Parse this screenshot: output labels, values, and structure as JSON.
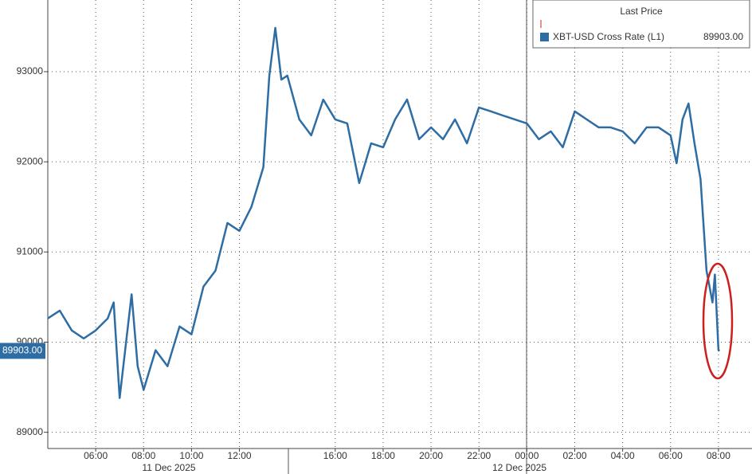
{
  "chart_data": {
    "type": "line",
    "x": [
      4,
      4.5,
      5,
      5.5,
      6,
      6.5,
      6.75,
      7,
      7.5,
      7.75,
      8,
      8.5,
      9,
      9.5,
      10,
      10.5,
      11,
      11.5,
      12,
      12.5,
      13,
      13.25,
      13.5,
      13.75,
      14,
      14.5,
      15,
      15.5,
      16,
      16.5,
      17,
      17.5,
      18,
      18.5,
      19,
      19.5,
      20,
      20.5,
      21,
      21.5,
      22,
      22.5,
      23,
      23.5,
      24,
      24.5,
      25,
      25.5,
      26,
      26.5,
      27,
      27.5,
      28,
      28.5,
      29,
      29.5,
      30,
      30.25,
      30.5,
      30.75,
      31,
      31.25,
      31.5,
      31.75,
      31.85,
      32,
      32.05
    ],
    "series": [
      {
        "name": "XBT-USD Cross Rate  (L1)",
        "color": "#2e6da4",
        "values": [
          90263,
          90350,
          90130,
          90040,
          90130,
          90263,
          90440,
          89380,
          90530,
          89733,
          89470,
          89910,
          89733,
          90174,
          90086,
          90616,
          90793,
          91322,
          91234,
          91500,
          91940,
          92956,
          93486,
          92912,
          92956,
          92470,
          92294,
          92690,
          92470,
          92426,
          91764,
          92205,
          92161,
          92470,
          92690,
          92250,
          92382,
          92250,
          92470,
          92205,
          92603,
          92560,
          92514,
          92470,
          92426,
          92250,
          92338,
          92161,
          92560,
          92470,
          92382,
          92382,
          92338,
          92205,
          92382,
          92382,
          92294,
          91985,
          92470,
          92647,
          92205,
          91808,
          90793,
          90440,
          90750,
          89910,
          89903
        ]
      }
    ],
    "legend_title": "Last Price",
    "last_price": {
      "value": 89903,
      "label": "89903.00"
    },
    "ylim": [
      88820,
      93795
    ],
    "yticks": [
      89000,
      90000,
      91000,
      92000,
      93000
    ],
    "xlim": [
      4,
      33.4
    ],
    "xticks": [
      {
        "value": 6,
        "label": "06:00"
      },
      {
        "value": 8,
        "label": "08:00"
      },
      {
        "value": 10,
        "label": "10:00"
      },
      {
        "value": 12,
        "label": "12:00"
      },
      {
        "value": 16,
        "label": "16:00"
      },
      {
        "value": 18,
        "label": "18:00"
      },
      {
        "value": 20,
        "label": "20:00"
      },
      {
        "value": 22,
        "label": "22:00"
      },
      {
        "value": 24,
        "label": "00:00"
      },
      {
        "value": 26,
        "label": "02:00"
      },
      {
        "value": 28,
        "label": "04:00"
      },
      {
        "value": 30,
        "label": "06:00"
      },
      {
        "value": 32,
        "label": "08:00"
      }
    ],
    "dates": [
      "11 Dec 2025",
      "12 Dec 2025"
    ],
    "grid": true
  }
}
